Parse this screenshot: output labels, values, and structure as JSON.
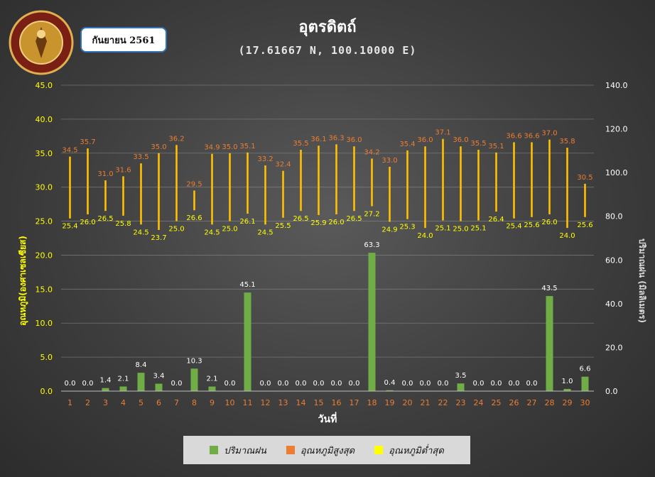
{
  "month_label": "กันยายน 2561",
  "logo_text": "กรมอุตุนิยมวิทยา METEOROLOGICAL DEPARTMENT",
  "colors": {
    "rain": "#70ad47",
    "max_temp": "#ed7d31",
    "min_temp": "#ffff00",
    "temp_bar": "#ffc000",
    "axis_left": "#ffff00",
    "axis_right": "#ffffff",
    "x_ticks": "#ed7d31"
  },
  "legend": [
    {
      "label": "ปริมาณฝน",
      "color": "#70ad47"
    },
    {
      "label": "อุณหภูมิสูงสุด",
      "color": "#ed7d31"
    },
    {
      "label": "อุณหภูมิต่ำสุด",
      "color": "#ffff00"
    }
  ],
  "chart_data": {
    "type": "bar",
    "title": "อุตรดิตถ์",
    "subtitle": "(17.61667 N, 100.10000 E)",
    "xlabel": "วันที่",
    "ylabel_left": "อุณหภูมิ(องศาเซลเซียส)",
    "ylabel_right": "ปริมาณฝน (มิลลิเมตร)",
    "ylim_left": [
      0,
      45
    ],
    "ylim_right": [
      0,
      140
    ],
    "yticks_left": [
      "0.0",
      "5.0",
      "10.0",
      "15.0",
      "20.0",
      "25.0",
      "30.0",
      "35.0",
      "40.0",
      "45.0"
    ],
    "yticks_right": [
      "0.0",
      "20.0",
      "40.0",
      "60.0",
      "80.0",
      "100.0",
      "120.0",
      "140.0"
    ],
    "grid": true,
    "legend_position": "bottom",
    "categories": [
      "1",
      "2",
      "3",
      "4",
      "5",
      "6",
      "7",
      "8",
      "9",
      "10",
      "11",
      "12",
      "13",
      "14",
      "15",
      "16",
      "17",
      "18",
      "19",
      "20",
      "21",
      "22",
      "23",
      "24",
      "25",
      "26",
      "27",
      "28",
      "29",
      "30"
    ],
    "series": [
      {
        "name": "ปริมาณฝน",
        "axis": "right",
        "values": [
          0.0,
          0.0,
          1.4,
          2.1,
          8.4,
          3.4,
          0.0,
          10.3,
          2.1,
          0.0,
          45.1,
          0.0,
          0.0,
          0.0,
          0.0,
          0.0,
          0.0,
          63.3,
          0.4,
          0.0,
          0.0,
          0.0,
          3.5,
          0.0,
          0.0,
          0.0,
          0.0,
          43.5,
          1.0,
          6.6
        ]
      },
      {
        "name": "อุณหภูมิสูงสุด",
        "axis": "left",
        "values": [
          34.5,
          35.7,
          31.0,
          31.6,
          33.5,
          35.0,
          36.2,
          29.5,
          34.9,
          35.0,
          35.1,
          33.2,
          32.4,
          35.5,
          36.1,
          36.3,
          36.0,
          34.2,
          33.0,
          35.4,
          36.0,
          37.1,
          36.0,
          35.5,
          35.1,
          36.6,
          36.6,
          37.0,
          35.8,
          30.5
        ]
      },
      {
        "name": "อุณหภูมิต่ำสุด",
        "axis": "left",
        "values": [
          25.4,
          26.0,
          26.5,
          25.8,
          24.5,
          23.7,
          25.0,
          26.6,
          24.5,
          25.0,
          26.1,
          24.5,
          25.5,
          26.5,
          25.9,
          26.0,
          26.5,
          27.2,
          24.9,
          25.3,
          24.0,
          25.1,
          25.0,
          25.1,
          26.4,
          25.4,
          25.6,
          26.0,
          24.0,
          25.6
        ]
      }
    ]
  }
}
